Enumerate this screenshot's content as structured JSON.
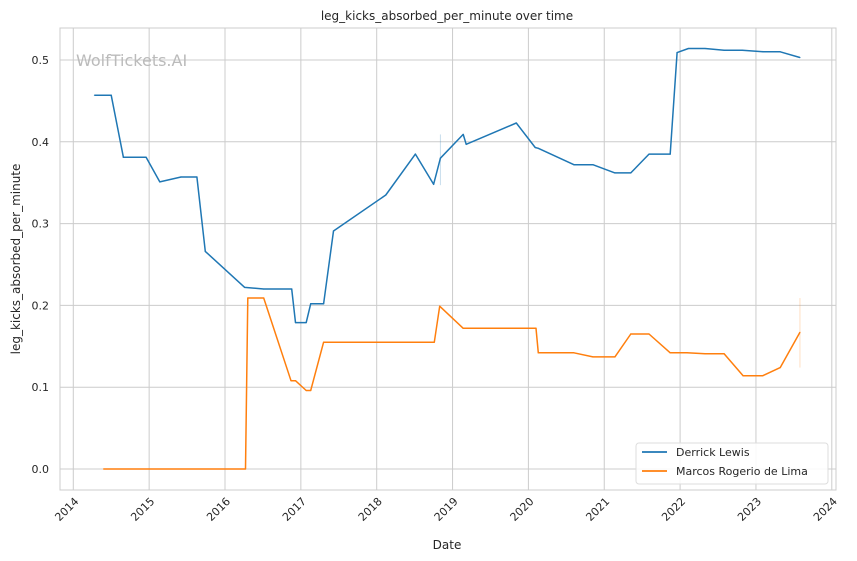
{
  "chart_data": {
    "type": "line",
    "title": "leg_kicks_absorbed_per_minute over time",
    "xlabel": "Date",
    "ylabel": "leg_kicks_absorbed_per_minute",
    "xlim": [
      2013.82,
      2024.03
    ],
    "ylim": [
      -0.026,
      0.538
    ],
    "x_ticks": [
      2014,
      2015,
      2016,
      2017,
      2018,
      2019,
      2020,
      2021,
      2022,
      2023,
      2024
    ],
    "x_tick_labels": [
      "2014",
      "2015",
      "2016",
      "2017",
      "2018",
      "2019",
      "2020",
      "2021",
      "2022",
      "2023",
      "2024"
    ],
    "y_ticks": [
      0.0,
      0.1,
      0.2,
      0.3,
      0.4,
      0.5
    ],
    "y_tick_labels": [
      "0.0",
      "0.1",
      "0.2",
      "0.3",
      "0.4",
      "0.5"
    ],
    "grid": true,
    "legend_position": "bottom-right",
    "watermark": "WolfTickets.AI",
    "series": [
      {
        "name": "Derrick Lewis",
        "color": "#1f77b4",
        "x": [
          2014.28,
          2014.5,
          2014.66,
          2014.96,
          2015.14,
          2015.42,
          2015.63,
          2015.74,
          2016.26,
          2016.51,
          2016.88,
          2016.93,
          2017.07,
          2017.13,
          2017.3,
          2017.43,
          2018.12,
          2018.51,
          2018.75,
          2018.84,
          2019.14,
          2019.18,
          2019.84,
          2020.09,
          2020.13,
          2020.6,
          2020.85,
          2021.14,
          2021.35,
          2021.59,
          2021.87,
          2021.96,
          2022.11,
          2022.33,
          2022.58,
          2022.82,
          2023.1,
          2023.32,
          2023.58
        ],
        "y": [
          0.457,
          0.457,
          0.381,
          0.381,
          0.351,
          0.357,
          0.357,
          0.266,
          0.222,
          0.22,
          0.22,
          0.179,
          0.179,
          0.202,
          0.202,
          0.291,
          0.335,
          0.385,
          0.348,
          0.38,
          0.409,
          0.397,
          0.423,
          0.393,
          0.392,
          0.372,
          0.372,
          0.362,
          0.362,
          0.385,
          0.385,
          0.509,
          0.514,
          0.514,
          0.512,
          0.512,
          0.51,
          0.51,
          0.503
        ],
        "interval": {
          "x": 2018.84,
          "low": 0.347,
          "high": 0.409
        }
      },
      {
        "name": "Marcos Rogerio de Lima",
        "color": "#ff7f0e",
        "x": [
          2014.4,
          2016.27,
          2016.3,
          2016.51,
          2016.87,
          2016.93,
          2017.07,
          2017.13,
          2017.3,
          2018.76,
          2018.83,
          2019.14,
          2020.1,
          2020.13,
          2020.6,
          2020.85,
          2021.14,
          2021.35,
          2021.59,
          2021.87,
          2022.09,
          2022.33,
          2022.58,
          2022.83,
          2023.09,
          2023.32,
          2023.58
        ],
        "y": [
          0.0,
          0.0,
          0.209,
          0.209,
          0.108,
          0.108,
          0.096,
          0.096,
          0.155,
          0.155,
          0.199,
          0.172,
          0.172,
          0.142,
          0.142,
          0.137,
          0.137,
          0.165,
          0.165,
          0.142,
          0.142,
          0.141,
          0.141,
          0.114,
          0.114,
          0.124,
          0.167
        ],
        "interval": {
          "x": 2023.58,
          "low": 0.124,
          "high": 0.209
        }
      }
    ]
  }
}
